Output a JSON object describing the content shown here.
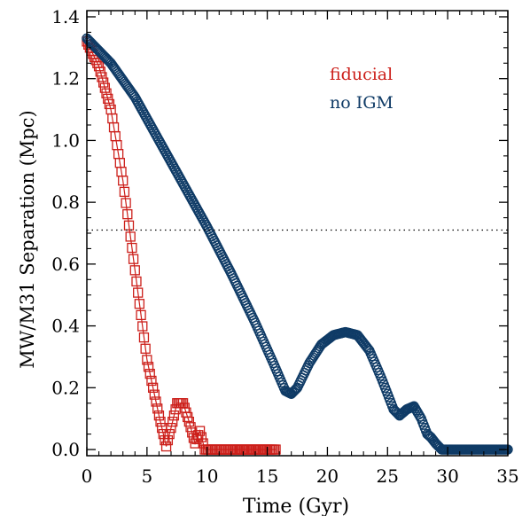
{
  "chart_data": {
    "type": "scatter",
    "xlabel": "Time (Gyr)",
    "ylabel": "MW/M31 Separation (Mpc)",
    "xlim": [
      0,
      35
    ],
    "ylim": [
      -0.02,
      1.42
    ],
    "xticks": [
      0,
      5,
      10,
      15,
      20,
      25,
      30,
      35
    ],
    "yticks": [
      0.0,
      0.2,
      0.4,
      0.6,
      0.8,
      1.0,
      1.2,
      1.4
    ],
    "xtick_labels": [
      "0",
      "5",
      "10",
      "15",
      "20",
      "25",
      "30",
      "35"
    ],
    "ytick_labels": [
      "0.0",
      "0.2",
      "0.4",
      "0.6",
      "0.8",
      "1.0",
      "1.2",
      "1.4"
    ],
    "grid": false,
    "legend_position": "top-right",
    "reference_line": {
      "y": 0.71,
      "style": "dotted"
    },
    "series": [
      {
        "name": "fiducial",
        "color": "#cc1f1a",
        "marker": "square",
        "points": [
          [
            0,
            1.32
          ],
          [
            1.0,
            1.24
          ],
          [
            2.0,
            1.1
          ],
          [
            3.0,
            0.87
          ],
          [
            4.0,
            0.58
          ],
          [
            5.0,
            0.29
          ],
          [
            6.0,
            0.11
          ],
          [
            6.6,
            0.01
          ],
          [
            7.0,
            0.07
          ],
          [
            7.5,
            0.15
          ],
          [
            8.0,
            0.15
          ],
          [
            8.5,
            0.09
          ],
          [
            9.0,
            0.02
          ],
          [
            9.4,
            0.06
          ],
          [
            9.8,
            0.0
          ],
          [
            12.0,
            0.0
          ],
          [
            15.7,
            0.0
          ]
        ]
      },
      {
        "name": "no IGM",
        "color": "#0f3b66",
        "marker": "circle",
        "points": [
          [
            0,
            1.33
          ],
          [
            2,
            1.25
          ],
          [
            4,
            1.14
          ],
          [
            6,
            1.0
          ],
          [
            8,
            0.86
          ],
          [
            10,
            0.72
          ],
          [
            12,
            0.57
          ],
          [
            14,
            0.41
          ],
          [
            15.5,
            0.28
          ],
          [
            16.5,
            0.19
          ],
          [
            17.0,
            0.18
          ],
          [
            17.5,
            0.2
          ],
          [
            18.5,
            0.28
          ],
          [
            19.5,
            0.34
          ],
          [
            20.5,
            0.37
          ],
          [
            21.5,
            0.38
          ],
          [
            22.5,
            0.37
          ],
          [
            23.5,
            0.32
          ],
          [
            24.5,
            0.23
          ],
          [
            25.5,
            0.13
          ],
          [
            26.0,
            0.11
          ],
          [
            26.6,
            0.13
          ],
          [
            27.2,
            0.14
          ],
          [
            27.8,
            0.1
          ],
          [
            28.3,
            0.05
          ],
          [
            28.6,
            0.04
          ],
          [
            29.0,
            0.02
          ],
          [
            29.5,
            0.0
          ],
          [
            35.0,
            0.0
          ]
        ]
      }
    ]
  }
}
